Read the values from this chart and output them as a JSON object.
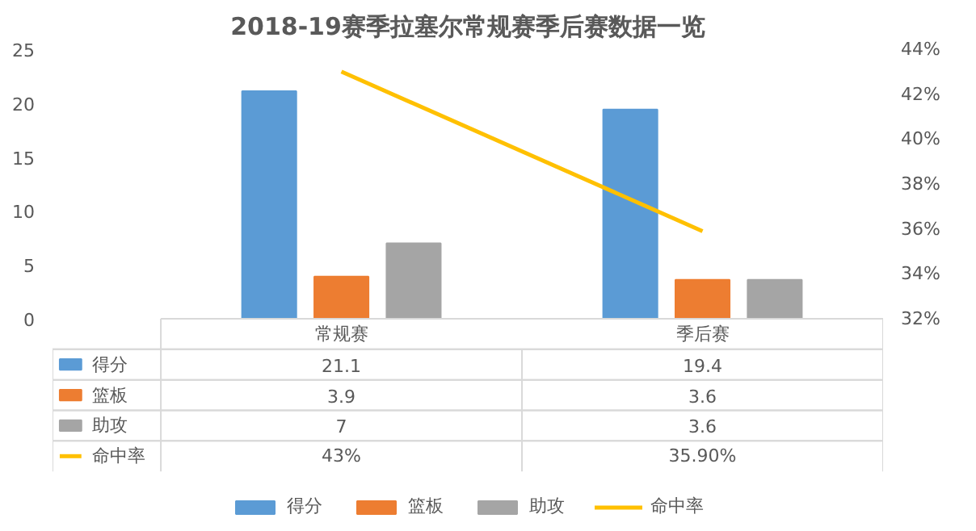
{
  "chart_data": {
    "type": "bar",
    "title": "2018-19赛季拉塞尔常规赛季后赛数据一览",
    "categories": [
      "常规赛",
      "季后赛"
    ],
    "series": [
      {
        "name": "得分",
        "color": "#5b9bd5",
        "values": [
          21.1,
          19.4
        ],
        "value_labels": [
          "21.1",
          "19.4"
        ]
      },
      {
        "name": "篮板",
        "color": "#ed7d31",
        "values": [
          3.9,
          3.6
        ],
        "value_labels": [
          "3.9",
          "3.6"
        ]
      },
      {
        "name": "助攻",
        "color": "#a5a5a5",
        "values": [
          7,
          3.6
        ],
        "value_labels": [
          "7",
          "3.6"
        ]
      },
      {
        "name": "命中率",
        "type": "line",
        "axis": "y2",
        "color": "#ffc000",
        "values": [
          43,
          35.9
        ],
        "value_labels": [
          "43%",
          "35.90%"
        ]
      }
    ],
    "ylim": [
      0,
      25
    ],
    "yticks": [
      0,
      5,
      10,
      15,
      20,
      25
    ],
    "y2lim": [
      32,
      44
    ],
    "y2ticks": [
      {
        "value": 32,
        "label": "32%"
      },
      {
        "value": 34,
        "label": "34%"
      },
      {
        "value": 36,
        "label": "36%"
      },
      {
        "value": 38,
        "label": "38%"
      },
      {
        "value": 40,
        "label": "40%"
      },
      {
        "value": 42,
        "label": "42%"
      },
      {
        "value": 44,
        "label": "44%"
      }
    ],
    "legend": "bottom"
  }
}
